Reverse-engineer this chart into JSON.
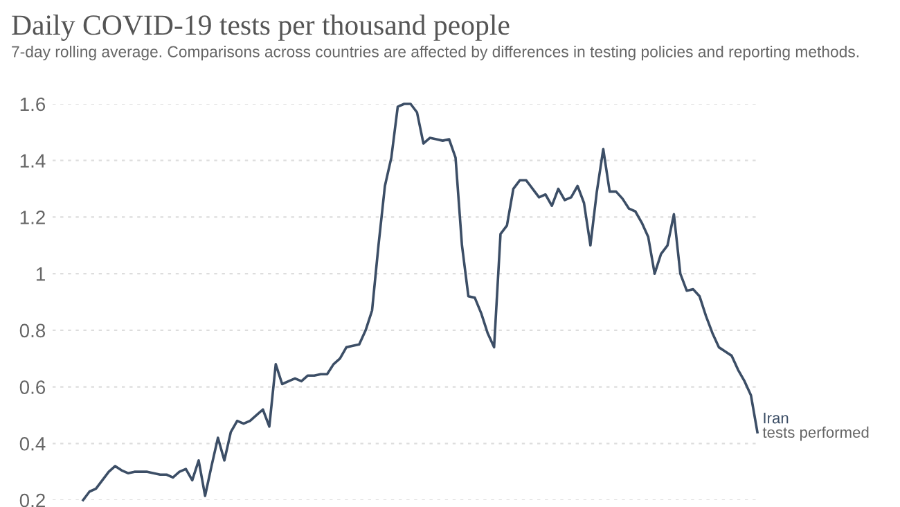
{
  "chart_data": {
    "type": "line",
    "title": "Daily COVID-19 tests per thousand people",
    "subtitle": "7-day rolling average. Comparisons across countries are affected by differences in testing policies and reporting methods.",
    "categories": [
      null,
      null,
      null,
      null,
      null,
      null,
      null,
      null,
      null,
      null,
      null,
      null,
      null,
      null,
      null,
      null,
      null,
      null,
      null,
      null,
      null,
      null,
      null,
      null,
      null,
      null,
      null,
      null,
      null,
      null,
      null,
      null,
      null,
      null,
      null,
      null,
      null,
      null,
      null,
      null,
      null,
      null,
      null,
      null,
      null,
      null,
      null,
      null,
      null,
      null,
      null,
      null,
      null,
      null,
      null,
      null,
      null,
      null,
      null,
      null,
      null,
      null,
      null,
      null,
      null,
      null,
      null,
      null,
      null,
      null,
      null,
      null,
      null,
      null,
      null,
      null,
      null,
      null,
      null,
      null,
      null,
      null,
      null,
      null,
      null,
      null,
      null,
      null,
      null,
      null,
      null,
      null,
      null,
      null,
      null,
      null,
      null,
      null,
      null,
      null,
      null,
      null,
      null,
      null,
      null,
      null
    ],
    "series": [
      {
        "name": "Iran",
        "color": "#3c4e66",
        "values": [
          0.2,
          0.23,
          0.24,
          0.27,
          0.3,
          0.32,
          0.305,
          0.295,
          0.3,
          0.3,
          0.3,
          0.295,
          0.29,
          0.29,
          0.28,
          0.3,
          0.31,
          0.27,
          0.34,
          0.215,
          0.32,
          0.42,
          0.34,
          0.44,
          0.48,
          0.47,
          0.48,
          0.5,
          0.52,
          0.46,
          0.68,
          0.61,
          0.62,
          0.63,
          0.62,
          0.64,
          0.64,
          0.645,
          0.645,
          0.68,
          0.7,
          0.74,
          0.745,
          0.75,
          0.8,
          0.87,
          1.1,
          1.31,
          1.41,
          1.59,
          1.6,
          1.6,
          1.57,
          1.46,
          1.48,
          1.475,
          1.47,
          1.475,
          1.41,
          1.1,
          0.92,
          0.915,
          0.86,
          0.79,
          0.74,
          1.14,
          1.17,
          1.3,
          1.33,
          1.33,
          1.3,
          1.27,
          1.28,
          1.24,
          1.3,
          1.26,
          1.27,
          1.31,
          1.25,
          1.1,
          1.29,
          1.44,
          1.29,
          1.29,
          1.265,
          1.23,
          1.22,
          1.18,
          1.13,
          1.0,
          1.07,
          1.1,
          1.21,
          1.0,
          0.94,
          0.945,
          0.92,
          0.85,
          0.79,
          0.74,
          0.725,
          0.71,
          0.66,
          0.62,
          0.57,
          0.44
        ]
      }
    ],
    "annotations": [
      "tests performed"
    ],
    "ylim": [
      0.2,
      1.6
    ],
    "yticks": [
      0.2,
      0.4,
      0.6,
      0.8,
      1,
      1.2,
      1.4,
      1.6
    ],
    "grid": "y",
    "tick_labels": "y",
    "line_style": "solid",
    "marker": "none"
  }
}
